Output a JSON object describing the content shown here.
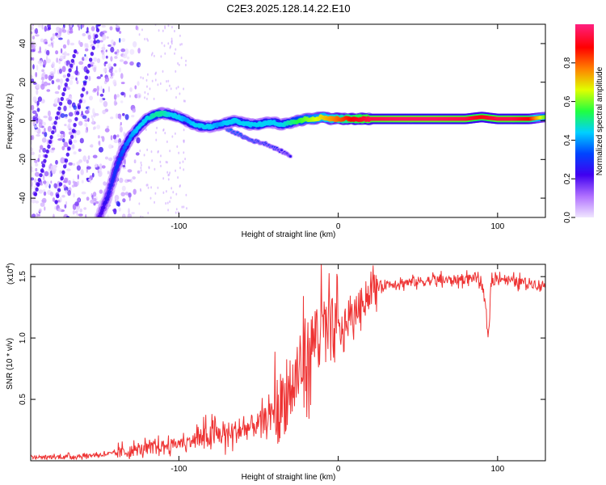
{
  "chart_data": [
    {
      "type": "heatmap",
      "title": "C2E3.2025.128.14.22.E10",
      "xlabel": "Height of straight line (km)",
      "ylabel": "Frequency (Hz)",
      "xlim": [
        -193,
        130
      ],
      "ylim": [
        -50,
        50
      ],
      "xticks": [
        -100,
        0,
        100
      ],
      "xtick_labels": [
        "-100",
        "0",
        "100"
      ],
      "yticks": [
        -40,
        -20,
        0,
        20,
        40
      ],
      "ytick_labels": [
        "-40",
        "-20",
        "0",
        "20",
        "40"
      ],
      "colorbar": {
        "label": "Normalized spectral amplitude",
        "range": [
          0,
          1
        ],
        "ticks": [
          0.0,
          0.2,
          0.4,
          0.6,
          0.8
        ],
        "tick_labels": [
          "0.0",
          "0.2",
          "0.4",
          "0.6",
          "0.8"
        ],
        "colormap": [
          "#f0e6ff",
          "#b070ff",
          "#4000f0",
          "#0044ff",
          "#00d0ff",
          "#20ff40",
          "#e0ff00",
          "#ff8000",
          "#ff0000",
          "#ff2080"
        ]
      },
      "main_trace": {
        "x": [
          -150,
          -145,
          -140,
          -135,
          -130,
          -125,
          -120,
          -115,
          -110,
          -105,
          -100,
          -95,
          -90,
          -85,
          -80,
          -75,
          -70,
          -65,
          -60,
          -55,
          -50,
          -45,
          -40,
          -35,
          -30,
          -25,
          -20,
          -15,
          -10,
          -5,
          0,
          5,
          10,
          20,
          40,
          60,
          80,
          90,
          100,
          110,
          120,
          130
        ],
        "y": [
          -50,
          -40,
          -26,
          -15,
          -8,
          -3,
          1,
          3,
          4,
          3,
          2,
          0,
          -2,
          -3,
          -3,
          -2,
          -1,
          0,
          -1,
          -2,
          -2,
          -1,
          -1,
          -2,
          -1,
          0,
          1,
          1,
          2,
          1,
          1,
          1,
          1,
          1,
          1,
          1,
          1,
          2,
          1,
          1,
          1,
          2
        ],
        "amplitude": [
          0.2,
          0.25,
          0.3,
          0.35,
          0.4,
          0.45,
          0.45,
          0.5,
          0.5,
          0.45,
          0.45,
          0.4,
          0.45,
          0.45,
          0.45,
          0.4,
          0.45,
          0.45,
          0.45,
          0.45,
          0.45,
          0.45,
          0.45,
          0.45,
          0.5,
          0.55,
          0.6,
          0.65,
          0.7,
          0.75,
          0.8,
          0.85,
          0.9,
          0.95,
          0.97,
          0.97,
          0.95,
          0.9,
          0.95,
          0.95,
          0.9,
          0.6
        ]
      },
      "secondary_trace": {
        "x": [
          -75,
          -70,
          -65,
          -60,
          -55,
          -50,
          -45,
          -40,
          -35,
          -30
        ],
        "y": [
          -1,
          -4,
          -6,
          -8,
          -10,
          -11,
          -12,
          -14,
          -16,
          -18
        ],
        "amplitude": [
          0.4,
          0.4,
          0.35,
          0.35,
          0.35,
          0.3,
          0.3,
          0.3,
          0.25,
          0.25
        ]
      },
      "noise_streaks": [
        {
          "x0": -190,
          "y0": -38,
          "x1": -165,
          "y1": 36
        },
        {
          "x0": -177,
          "y0": -42,
          "x1": -150,
          "y1": 50
        }
      ],
      "noise_region": [
        -193,
        -125
      ]
    },
    {
      "type": "line",
      "xlabel": "Height of straight line (km)",
      "ylabel": "SNR (10 * v/v)",
      "scale_note": "(x10",
      "scale_exponent": "4",
      "scale_close": ")",
      "xlim": [
        -193,
        130
      ],
      "ylim": [
        0,
        1.6
      ],
      "xticks": [
        -100,
        0,
        100
      ],
      "xtick_labels": [
        "-100",
        "0",
        "100"
      ],
      "yticks": [
        0.5,
        1.0,
        1.5
      ],
      "ytick_labels": [
        "0.5",
        "1.0",
        "1.5"
      ],
      "line_color": "#ee3333",
      "series": [
        {
          "name": "SNR",
          "x": [
            -193,
            -180,
            -160,
            -140,
            -130,
            -120,
            -110,
            -100,
            -90,
            -80,
            -70,
            -60,
            -50,
            -40,
            -30,
            -25,
            -20,
            -15,
            -12,
            -10,
            -5,
            0,
            5,
            10,
            15,
            20,
            25,
            30,
            40,
            50,
            60,
            70,
            80,
            88,
            92,
            94,
            96,
            100,
            110,
            120,
            130
          ],
          "y": [
            0.03,
            0.03,
            0.04,
            0.06,
            0.08,
            0.1,
            0.12,
            0.14,
            0.17,
            0.2,
            0.22,
            0.25,
            0.3,
            0.4,
            0.55,
            0.7,
            0.85,
            1.0,
            1.1,
            1.05,
            1.05,
            1.05,
            1.1,
            1.2,
            1.3,
            1.38,
            1.42,
            1.44,
            1.45,
            1.46,
            1.47,
            1.47,
            1.48,
            1.5,
            1.3,
            1.0,
            1.45,
            1.5,
            1.46,
            1.45,
            1.43
          ]
        }
      ],
      "noise_amplitude": [
        {
          "from": -193,
          "to": -140,
          "amp": 0.02
        },
        {
          "from": -140,
          "to": -90,
          "amp": 0.06
        },
        {
          "from": -90,
          "to": -40,
          "amp": 0.12
        },
        {
          "from": -40,
          "to": 0,
          "amp": 0.35
        },
        {
          "from": 0,
          "to": 25,
          "amp": 0.15
        },
        {
          "from": 25,
          "to": 130,
          "amp": 0.05
        }
      ]
    }
  ]
}
